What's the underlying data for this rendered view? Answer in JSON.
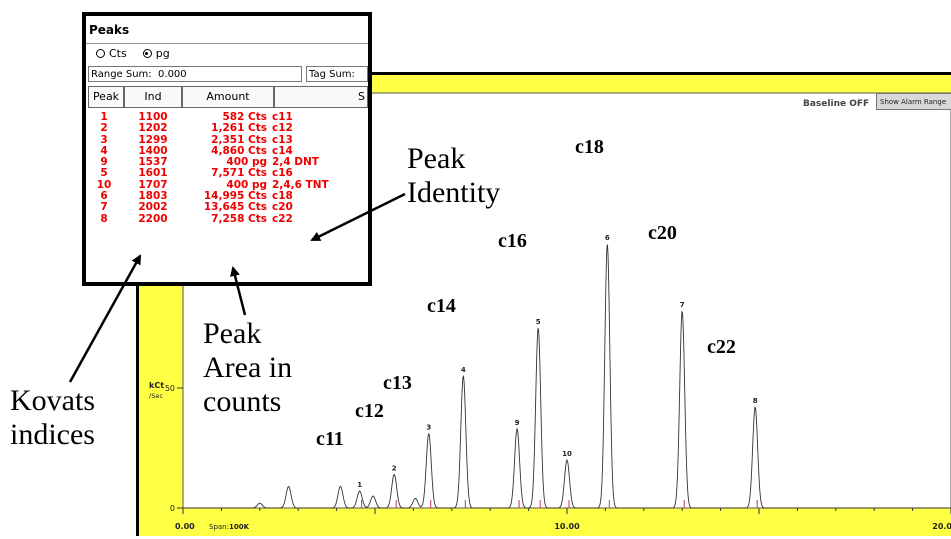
{
  "peaks_window": {
    "title": "Peaks",
    "radio_cts": "Cts",
    "radio_pg": "pg",
    "selected": "pg",
    "range_sum_label": "Range Sum:",
    "range_sum_value": "0.000",
    "tag_sum_label": "Tag Sum:",
    "columns": [
      "Peak",
      "Ind",
      "Amount",
      "S"
    ],
    "rows": [
      {
        "peak": "1",
        "ind": "1100",
        "amount": "582 Cts",
        "id": "c11"
      },
      {
        "peak": "2",
        "ind": "1202",
        "amount": "1,261 Cts",
        "id": "c12"
      },
      {
        "peak": "3",
        "ind": "1299",
        "amount": "2,351 Cts",
        "id": "c13"
      },
      {
        "peak": "4",
        "ind": "1400",
        "amount": "4,860 Cts",
        "id": "c14"
      },
      {
        "peak": "9",
        "ind": "1537",
        "amount": "400 pg",
        "id": "2,4 DNT"
      },
      {
        "peak": "5",
        "ind": "1601",
        "amount": "7,571 Cts",
        "id": "c16"
      },
      {
        "peak": "10",
        "ind": "1707",
        "amount": "400 pg",
        "id": "2,4,6 TNT"
      },
      {
        "peak": "6",
        "ind": "1803",
        "amount": "14,995 Cts",
        "id": "c18"
      },
      {
        "peak": "7",
        "ind": "2002",
        "amount": "13,645 Cts",
        "id": "c20"
      },
      {
        "peak": "8",
        "ind": "2200",
        "amount": "7,258 Cts",
        "id": "c22"
      }
    ],
    "row_color": "#ee0000"
  },
  "chart_window": {
    "baseline_label": "Baseline OFF",
    "alarm_button": "Show Alarm Range",
    "y_label_unit": "kCt",
    "y_label_per": "/Sec",
    "span_label": "Span:",
    "span_value": "100K",
    "background": "#ffff44",
    "trace_color": "#333333"
  },
  "chart_data": {
    "type": "line",
    "x_ticks": [
      "0.00",
      "10.00",
      "20.0"
    ],
    "y_ticks": [
      "50",
      "0"
    ],
    "xlim": [
      0,
      20
    ],
    "ylim": [
      0,
      100
    ],
    "ylabel": "kCt /Sec",
    "peaks": [
      {
        "label": "1",
        "x": 4.6,
        "height": 7
      },
      {
        "label": "2",
        "x": 5.5,
        "height": 14
      },
      {
        "label": "3",
        "x": 6.4,
        "height": 31
      },
      {
        "label": "4",
        "x": 7.3,
        "height": 55
      },
      {
        "label": "9",
        "x": 8.7,
        "height": 33
      },
      {
        "label": "5",
        "x": 9.25,
        "height": 75
      },
      {
        "label": "10",
        "x": 10.0,
        "height": 20
      },
      {
        "label": "6",
        "x": 11.05,
        "height": 110
      },
      {
        "label": "7",
        "x": 13.0,
        "height": 82
      },
      {
        "label": "8",
        "x": 14.9,
        "height": 42
      }
    ],
    "minor_peaks": [
      {
        "x": 2.0,
        "height": 2
      },
      {
        "x": 2.75,
        "height": 9
      },
      {
        "x": 4.1,
        "height": 9
      },
      {
        "x": 4.95,
        "height": 5
      },
      {
        "x": 6.05,
        "height": 4
      }
    ]
  },
  "annotations": {
    "peak_identity": [
      "Peak",
      "Identity"
    ],
    "peak_area": [
      "Peak",
      "Area in",
      "counts"
    ],
    "kovats": [
      "Kovats",
      "indices"
    ],
    "labels": [
      "c11",
      "c12",
      "c13",
      "c14",
      "c16",
      "c18",
      "c20",
      "c22"
    ]
  }
}
